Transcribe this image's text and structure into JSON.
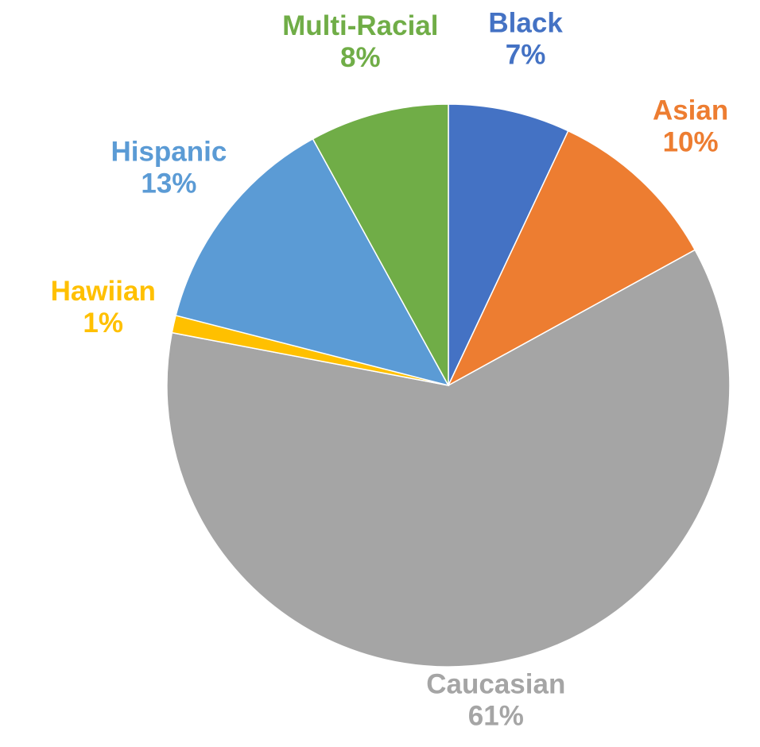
{
  "chart_data": {
    "type": "pie",
    "title": "",
    "start_angle_deg": 0,
    "direction": "clockwise",
    "slices": [
      {
        "category": "Black",
        "value": 7,
        "label": "7%",
        "color": "#4472C4"
      },
      {
        "category": "Asian",
        "value": 10,
        "label": "10%",
        "color": "#ED7D31"
      },
      {
        "category": "Caucasian",
        "value": 61,
        "label": "61%",
        "color": "#A5A5A5"
      },
      {
        "category": "Hawiian",
        "value": 1,
        "label": "1%",
        "color": "#FFC000"
      },
      {
        "category": "Hispanic",
        "value": 13,
        "label": "13%",
        "color": "#5B9BD5"
      },
      {
        "category": "Multi-Racial",
        "value": 8,
        "label": "8%",
        "color": "#70AD47"
      }
    ],
    "data_labels": "outside",
    "legend": "none"
  }
}
